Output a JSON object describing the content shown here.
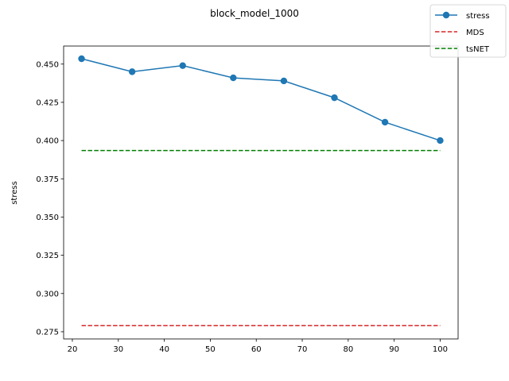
{
  "chart_data": {
    "type": "line",
    "title": "block_model_1000",
    "xlabel": "",
    "ylabel": "stress",
    "xlim": [
      18.1,
      103.9
    ],
    "ylim": [
      0.2703,
      0.4618
    ],
    "xticks": [
      20,
      30,
      40,
      50,
      60,
      70,
      80,
      90,
      100
    ],
    "xtick_labels": [
      "20",
      "30",
      "40",
      "50",
      "60",
      "70",
      "80",
      "90",
      "100"
    ],
    "yticks": [
      0.275,
      0.3,
      0.325,
      0.35,
      0.375,
      0.4,
      0.425,
      0.45
    ],
    "ytick_labels": [
      "0.275",
      "0.300",
      "0.325",
      "0.350",
      "0.375",
      "0.400",
      "0.425",
      "0.450"
    ],
    "grid": false,
    "legend_position": "top-right",
    "series": [
      {
        "name": "stress",
        "style": "solid-marker",
        "color": "#1f77b4",
        "x": [
          22,
          33,
          44,
          55,
          66,
          77,
          88,
          100
        ],
        "y": [
          0.4535,
          0.445,
          0.449,
          0.441,
          0.439,
          0.428,
          0.412,
          0.4
        ]
      },
      {
        "name": "MDS",
        "style": "dashed",
        "color": "#d62728",
        "x": [
          22,
          100
        ],
        "y": [
          0.279,
          0.279
        ]
      },
      {
        "name": "tsNET",
        "style": "dashed",
        "color": "#008000",
        "x": [
          22,
          100
        ],
        "y": [
          0.3935,
          0.3935
        ]
      }
    ]
  }
}
